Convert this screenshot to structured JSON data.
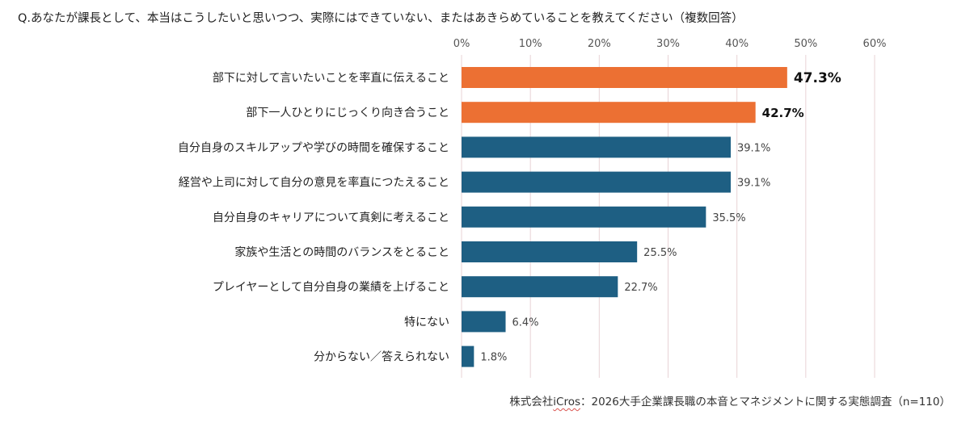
{
  "question": "Q.あなたが課長として、本当はこうしたいと思いつつ、実際にはできていない、またはあきらめていることを教えてください（複数回答）",
  "source": {
    "prefix": "株式会社",
    "brand": "iCros",
    "suffix": "：2026大手企業課長職の本音とマネジメントに関する実態調査（n=110）"
  },
  "colors": {
    "highlight": "#ec7033",
    "normal": "#1e5f83",
    "grid": "#e8d3d6"
  },
  "chart_data": {
    "type": "bar",
    "orientation": "horizontal",
    "xlim": [
      0,
      60
    ],
    "tick_values": [
      0,
      10,
      20,
      30,
      40,
      50,
      60
    ],
    "tick_labels": [
      "0%",
      "10%",
      "20%",
      "30%",
      "40%",
      "50%",
      "60%"
    ],
    "axis_position": "top",
    "grid": true,
    "categories": [
      "部下に対して言いたいことを率直に伝えること",
      "部下一人ひとりにじっくり向き合うこと",
      "自分自身のスキルアップや学びの時間を確保すること",
      "経営や上司に対して自分の意見を率直につたえること",
      "自分自身のキャリアについて真剣に考えること",
      "家族や生活との時間のバランスをとること",
      "プレイヤーとして自分自身の業績を上げること",
      "特にない",
      "分からない／答えられない"
    ],
    "values": [
      47.3,
      42.7,
      39.1,
      39.1,
      35.5,
      25.5,
      22.7,
      6.4,
      1.8
    ],
    "data_labels": [
      "47.3%",
      "42.7%",
      "39.1%",
      "39.1%",
      "35.5%",
      "25.5%",
      "22.7%",
      "6.4%",
      "1.8%"
    ],
    "highlighted": [
      true,
      true,
      false,
      false,
      false,
      false,
      false,
      false,
      false
    ]
  }
}
